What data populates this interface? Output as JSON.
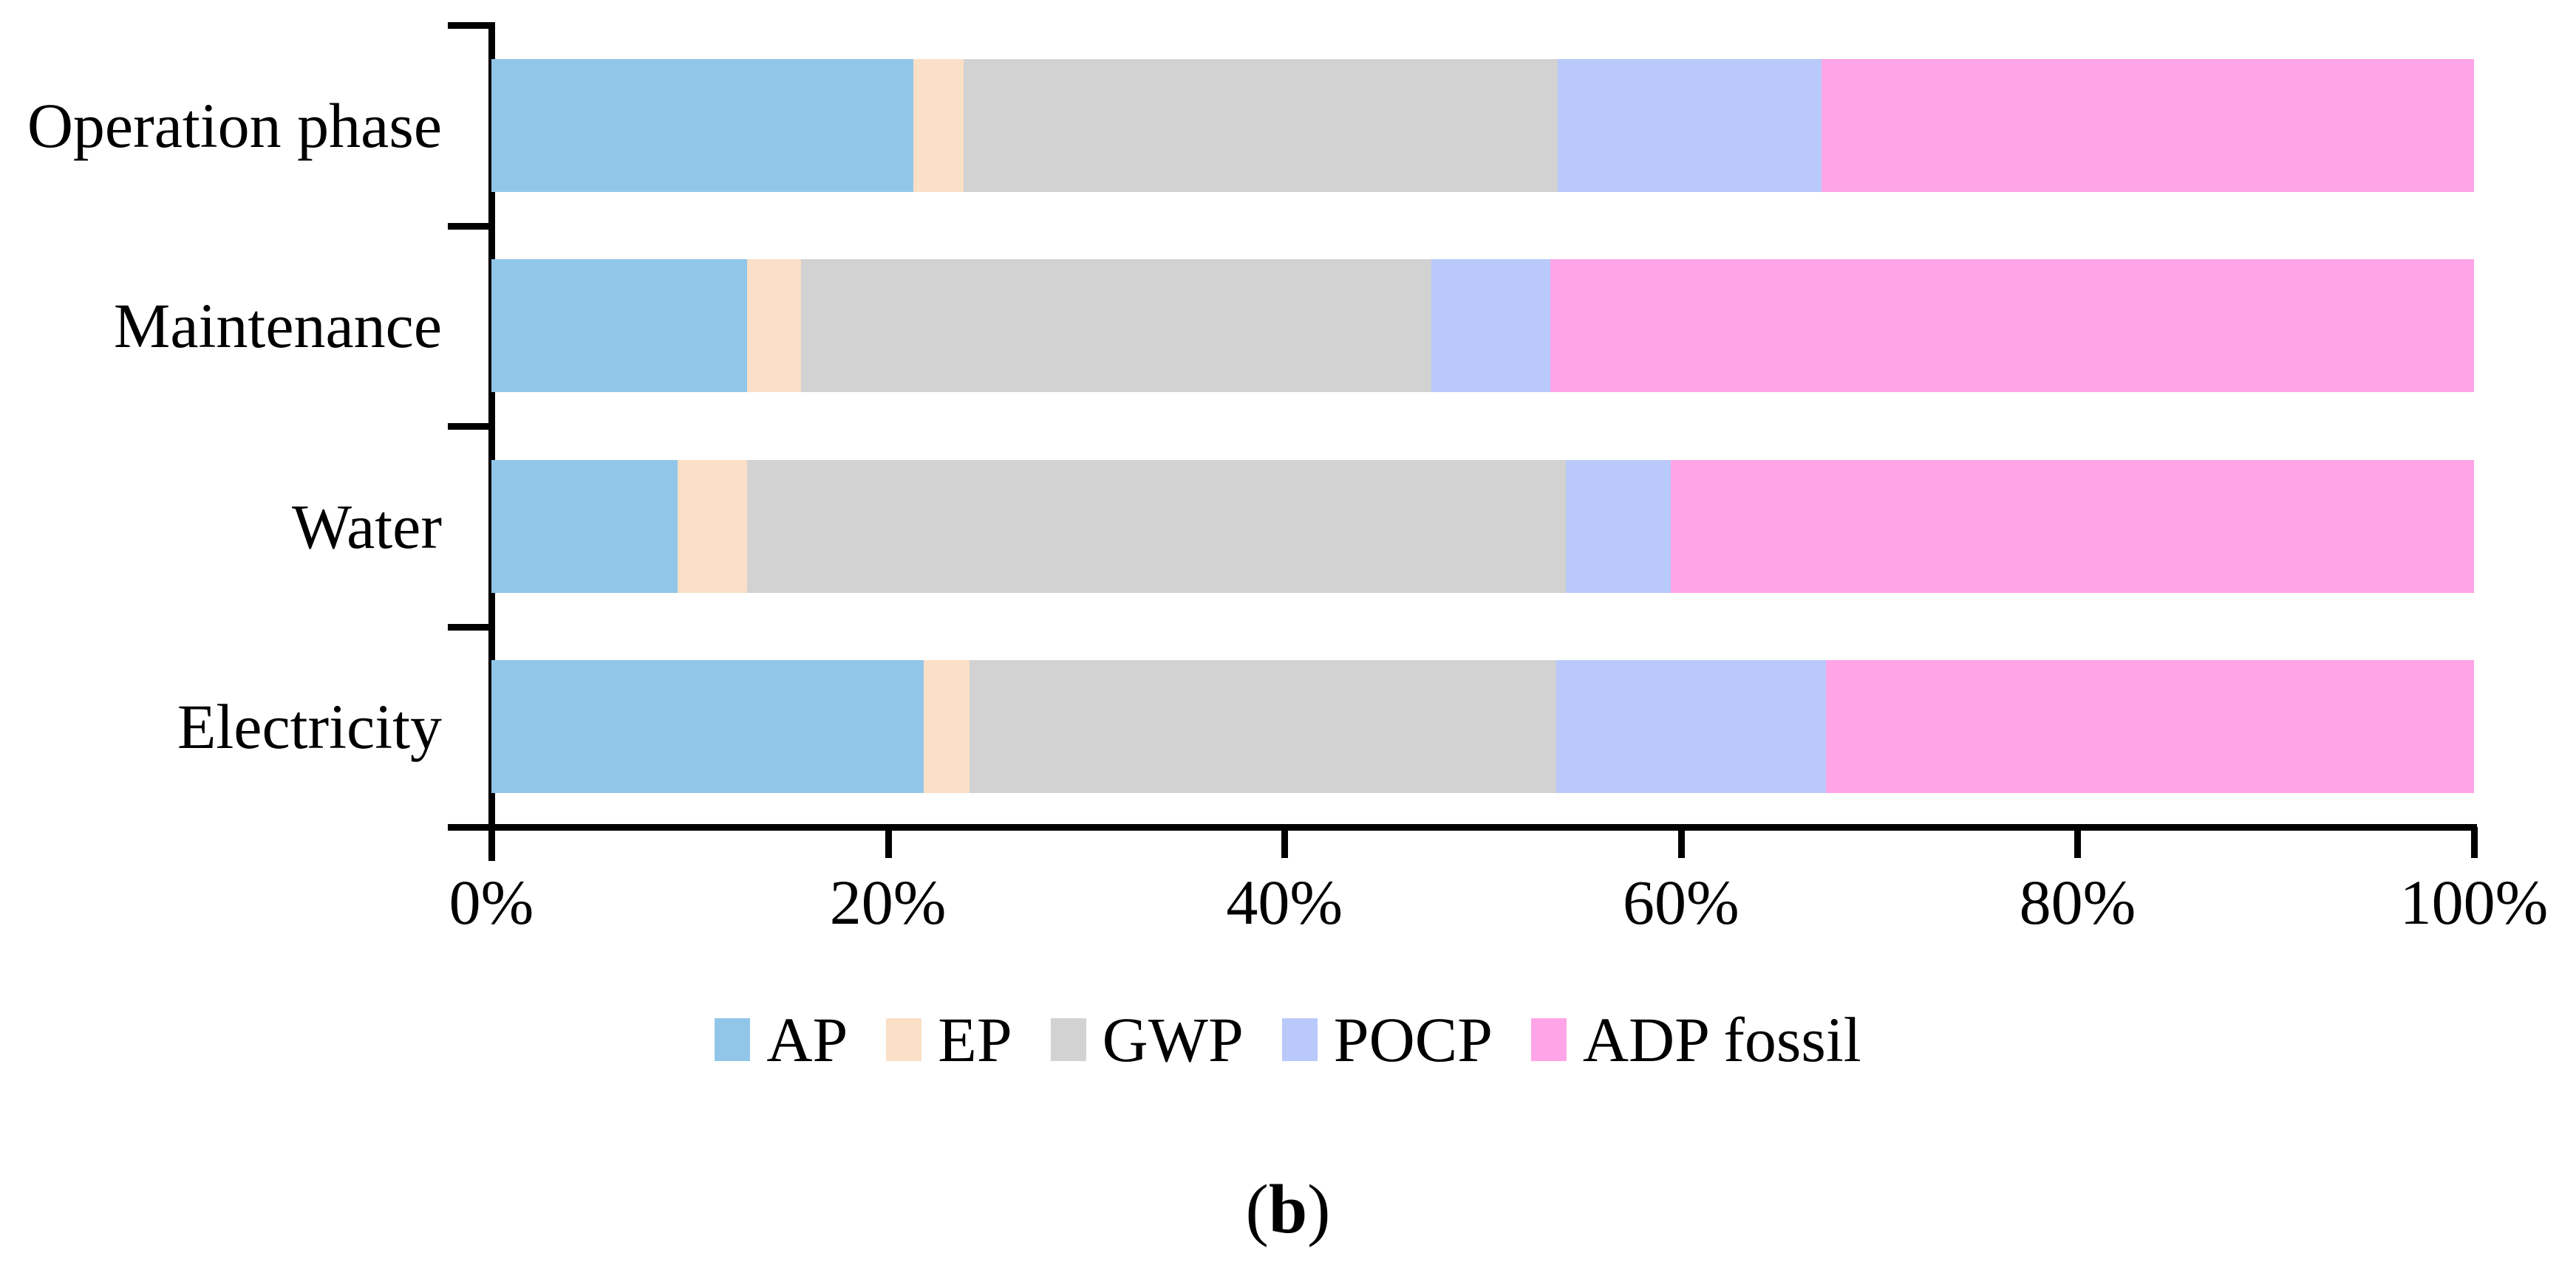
{
  "figure": {
    "caption": {
      "open": "(",
      "label": "b",
      "close": ")"
    }
  },
  "chart_data": {
    "type": "bar",
    "variant": "horizontal-stacked-100-percent",
    "title": "",
    "xlabel": "",
    "ylabel": "",
    "grid": false,
    "legend_position": "bottom",
    "categories": [
      "Operation phase",
      "Maintenance",
      "Water",
      "Electricity"
    ],
    "series": [
      {
        "name": "AP",
        "color": "#92C6E9",
        "values": [
          21.3,
          12.9,
          9.4,
          21.8
        ]
      },
      {
        "name": "EP",
        "color": "#FBDFC7",
        "values": [
          2.5,
          2.7,
          3.5,
          2.3
        ]
      },
      {
        "name": "GWP",
        "color": "#D2D2D2",
        "values": [
          30.0,
          31.8,
          41.3,
          29.6
        ]
      },
      {
        "name": "POCP",
        "color": "#B9C9FA",
        "values": [
          13.3,
          6.0,
          5.3,
          13.6
        ]
      },
      {
        "name": "ADP fossil",
        "color": "#FFA4E7",
        "values": [
          32.9,
          46.6,
          40.5,
          32.7
        ]
      }
    ],
    "x_axis": {
      "min": 0,
      "max": 100,
      "tick_labels": [
        "0%",
        "20%",
        "40%",
        "60%",
        "80%",
        "100%"
      ],
      "tick_values": [
        0,
        20,
        40,
        60,
        80,
        100
      ]
    },
    "axis_color": "#000000",
    "text_color": "#000000"
  }
}
